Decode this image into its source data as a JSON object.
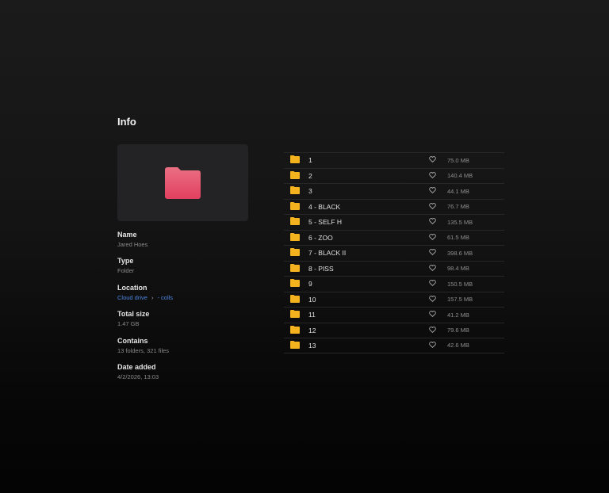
{
  "info": {
    "title": "Info",
    "folder_color": "#e44b6e",
    "fields": {
      "name": {
        "label": "Name",
        "value": "Jared Hoes"
      },
      "type": {
        "label": "Type",
        "value": "Folder"
      },
      "location": {
        "label": "Location",
        "root": "Cloud drive",
        "folder": "- colls"
      },
      "total_size": {
        "label": "Total size",
        "value": "1.47 GB"
      },
      "contains": {
        "label": "Contains",
        "value": "13 folders, 321 files"
      },
      "date_added": {
        "label": "Date added",
        "value": "4/2/2026, 13:03"
      }
    }
  },
  "list": {
    "folder_icon_color": "#f5b21f",
    "items": [
      {
        "name": "1",
        "size": "75.0 MB"
      },
      {
        "name": "2",
        "size": "140.4 MB"
      },
      {
        "name": "3",
        "size": "44.1 MB"
      },
      {
        "name": "4 - BLACK",
        "size": "76.7 MB"
      },
      {
        "name": "5 - SELF H",
        "size": "135.5 MB"
      },
      {
        "name": "6 - ZOO",
        "size": "61.5 MB"
      },
      {
        "name": "7 - BLACK II",
        "size": "398.6 MB"
      },
      {
        "name": "8 - PISS",
        "size": "98.4 MB"
      },
      {
        "name": "9",
        "size": "150.5 MB"
      },
      {
        "name": "10",
        "size": "157.5 MB"
      },
      {
        "name": "11",
        "size": "41.2 MB"
      },
      {
        "name": "12",
        "size": "79.6 MB"
      },
      {
        "name": "13",
        "size": "42.6 MB"
      }
    ]
  }
}
